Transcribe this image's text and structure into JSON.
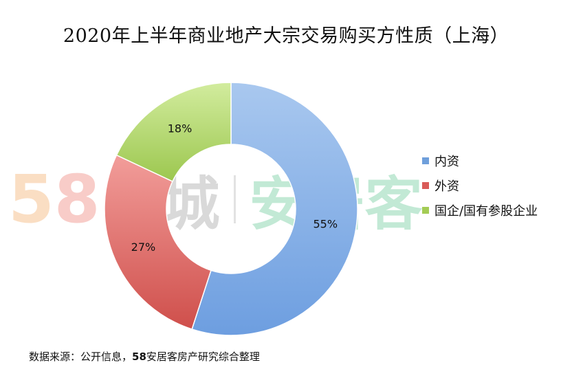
{
  "watermark": {
    "digit_1": "5",
    "digit_2": "8",
    "brand_tc": "同城",
    "brand_ajk": "安居客"
  },
  "chart_data": {
    "type": "pie",
    "title": "2020年上半年商业地产大宗交易购买方性质（上海）",
    "donut": true,
    "series": [
      {
        "name": "内资",
        "value": 55,
        "label": "55%",
        "color": "#6f9fdb"
      },
      {
        "name": "外资",
        "value": 27,
        "label": "27%",
        "color": "#d95b58"
      },
      {
        "name": "国企/国有参股企业",
        "value": 18,
        "label": "18%",
        "color": "#a4cc55"
      }
    ],
    "legend_position": "right"
  },
  "source": {
    "prefix": "数据来源：公开信息，",
    "bold": "58",
    "suffix": "安居客房产研究综合整理"
  }
}
